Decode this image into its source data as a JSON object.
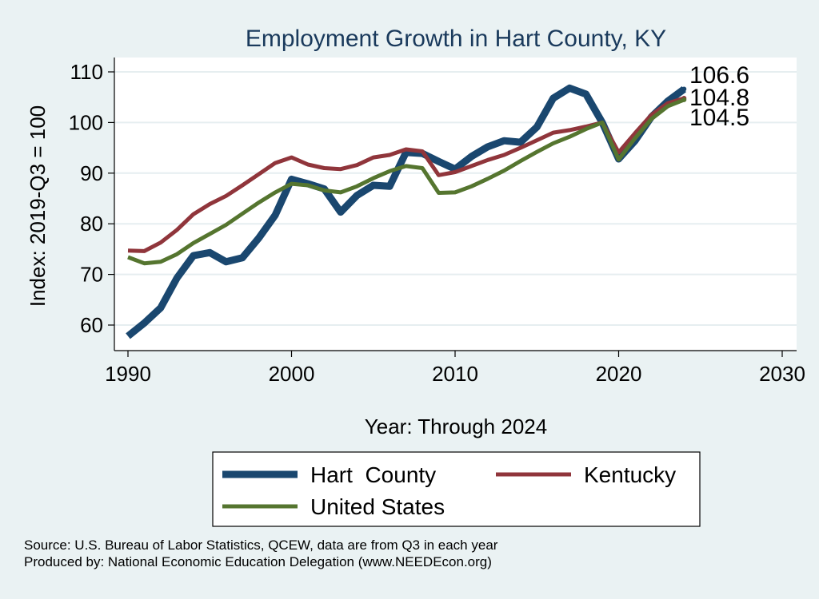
{
  "chart_data": {
    "type": "line",
    "title": "Employment Growth in Hart County, KY",
    "xlabel": "Year: Through 2024",
    "ylabel": "Index: 2019-Q3 = 100",
    "xlim": [
      1990,
      2030
    ],
    "ylim": [
      55,
      112
    ],
    "xticks": [
      1990,
      2000,
      2010,
      2020,
      2030
    ],
    "yticks": [
      60,
      70,
      80,
      90,
      100,
      110
    ],
    "grid": "horizontal",
    "legend_position": "bottom",
    "x": [
      1990,
      1991,
      1992,
      1993,
      1994,
      1995,
      1996,
      1997,
      1998,
      1999,
      2000,
      2001,
      2002,
      2003,
      2004,
      2005,
      2006,
      2007,
      2008,
      2009,
      2010,
      2011,
      2012,
      2013,
      2014,
      2015,
      2016,
      2017,
      2018,
      2019,
      2020,
      2021,
      2022,
      2023,
      2024
    ],
    "series": [
      {
        "name": "Hart  County",
        "color": "#1a476f",
        "width": 9,
        "end_label": "106.6",
        "values": [
          57.8,
          60.4,
          63.4,
          69.3,
          73.7,
          74.3,
          72.5,
          73.3,
          77.2,
          81.7,
          88.8,
          87.9,
          86.9,
          82.3,
          85.6,
          87.6,
          87.4,
          94.1,
          93.9,
          92.3,
          90.8,
          93.3,
          95.2,
          96.4,
          96.1,
          99.1,
          104.8,
          106.8,
          105.6,
          100.0,
          92.8,
          96.4,
          101.1,
          104.2,
          106.6
        ]
      },
      {
        "name": "Kentucky",
        "color": "#90353b",
        "width": 5,
        "end_label": "104.8",
        "values": [
          74.7,
          74.6,
          76.3,
          78.8,
          81.9,
          83.9,
          85.5,
          87.6,
          89.8,
          92.0,
          93.1,
          91.7,
          91.0,
          90.8,
          91.6,
          93.1,
          93.6,
          94.7,
          94.3,
          89.6,
          90.2,
          91.4,
          92.6,
          93.6,
          95.0,
          96.5,
          98.0,
          98.5,
          99.2,
          100.0,
          94.1,
          97.9,
          101.5,
          103.8,
          104.8
        ]
      },
      {
        "name": "United States",
        "color": "#55752f",
        "width": 5,
        "end_label": "104.5",
        "values": [
          73.4,
          72.2,
          72.5,
          74.0,
          76.2,
          78.0,
          79.8,
          82.0,
          84.2,
          86.2,
          87.9,
          87.6,
          86.6,
          86.2,
          87.4,
          89.0,
          90.4,
          91.4,
          91.0,
          86.1,
          86.2,
          87.4,
          88.9,
          90.5,
          92.4,
          94.2,
          95.9,
          97.2,
          98.7,
          100.0,
          92.7,
          96.9,
          100.7,
          103.2,
          104.5
        ]
      }
    ]
  },
  "footer": {
    "source_line": "Source: U.S. Bureau of Labor Statistics, QCEW, data are from Q3 in each year",
    "producer_line": "Produced by: National Economic Education Delegation (www.NEEDEcon.org)"
  }
}
